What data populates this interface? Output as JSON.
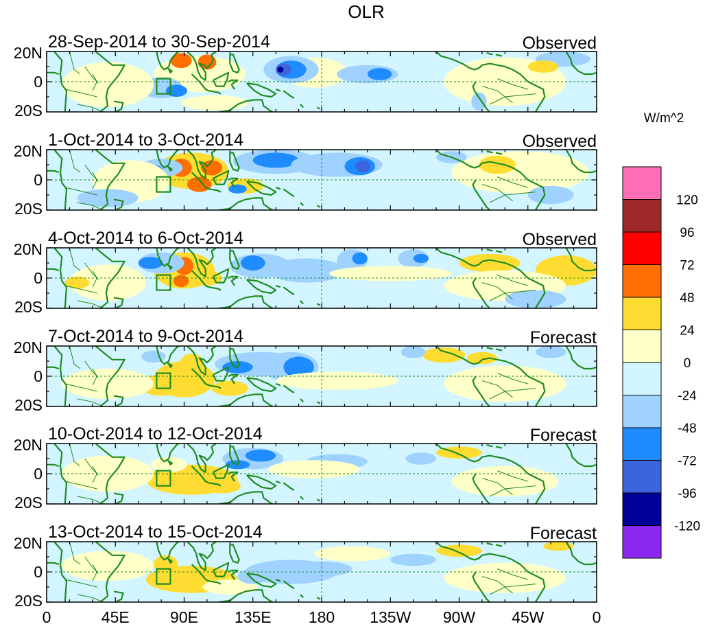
{
  "chart_data": {
    "type": "heatmap",
    "title": "OLR",
    "units": "W/m^2",
    "x_ticks": [
      "0",
      "45E",
      "90E",
      "135E",
      "180",
      "135W",
      "90W",
      "45W",
      "0"
    ],
    "y_ticks": [
      "20N",
      "0",
      "20S"
    ],
    "xlim": [
      0,
      360
    ],
    "ylim": [
      -20,
      20
    ],
    "colorbar": {
      "colors": [
        "#ff6eb4",
        "#a02828",
        "#ff0000",
        "#ff6e00",
        "#ffdc32",
        "#ffffc8",
        "#d2f5ff",
        "#a0d2ff",
        "#1e8cff",
        "#3c64dc",
        "#000096",
        "#8c28f0"
      ],
      "labels": [
        "120",
        "96",
        "72",
        "48",
        "24",
        "0",
        "-24",
        "-48",
        "-72",
        "-96",
        "-120"
      ]
    },
    "panels": [
      {
        "date_range": "28-Sep-2014 to 30-Sep-2014",
        "kind": "Observed"
      },
      {
        "date_range": "1-Oct-2014 to 3-Oct-2014",
        "kind": "Observed"
      },
      {
        "date_range": "4-Oct-2014 to 6-Oct-2014",
        "kind": "Observed"
      },
      {
        "date_range": "7-Oct-2014 to 9-Oct-2014",
        "kind": "Forecast"
      },
      {
        "date_range": "10-Oct-2014 to 12-Oct-2014",
        "kind": "Forecast"
      },
      {
        "date_range": "13-Oct-2014 to 15-Oct-2014",
        "kind": "Forecast"
      }
    ]
  }
}
